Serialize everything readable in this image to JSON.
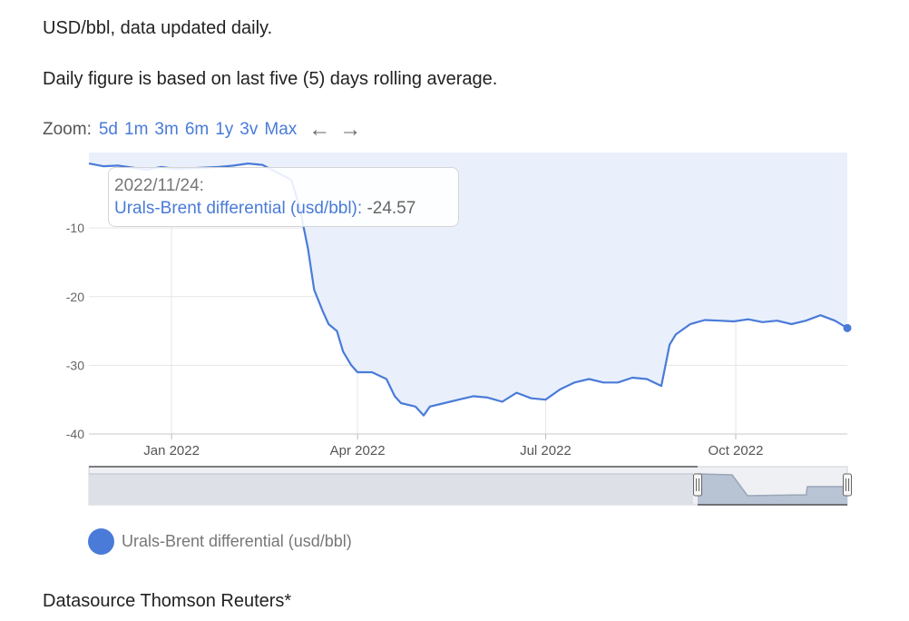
{
  "intro": {
    "line1": "USD/bbl, data updated daily.",
    "line2": "Daily figure is based on last five (5) days rolling average."
  },
  "zoom": {
    "label": "Zoom:",
    "options": [
      "5d",
      "1m",
      "3m",
      "6m",
      "1y",
      "3v",
      "Max"
    ],
    "back_icon": "arrow-left-icon",
    "forward_icon": "arrow-right-icon"
  },
  "tooltip": {
    "date": "2022/11/24:",
    "series": "Urals-Brent differential (usd/bbl)",
    "separator": ":",
    "value": "-24.57"
  },
  "legend": {
    "label": "Urals-Brent differential (usd/bbl)"
  },
  "footer": {
    "source": "Datasource Thomson Reuters*"
  },
  "colors": {
    "line": "#4a7bd8",
    "area": "#e9f0fc",
    "grid": "#e6e6e6",
    "navigator_fill": "#b8c3d4"
  },
  "chart_data": {
    "type": "area",
    "title": "",
    "xlabel": "",
    "ylabel": "",
    "x_ticks": [
      "Jan 2022",
      "Apr 2022",
      "Jul 2022",
      "Oct 2022"
    ],
    "y_ticks": [
      -10,
      -20,
      -30,
      -40
    ],
    "ylim": [
      -40,
      1
    ],
    "xlim": [
      "2021-11-22",
      "2022-11-24"
    ],
    "grid": true,
    "legend_position": "bottom-left",
    "series": [
      {
        "name": "Urals-Brent differential (usd/bbl)",
        "points": [
          [
            "2021-11-22",
            -0.6
          ],
          [
            "2021-11-29",
            -1.0
          ],
          [
            "2021-12-06",
            -0.9
          ],
          [
            "2021-12-13",
            -1.2
          ],
          [
            "2021-12-20",
            -1.5
          ],
          [
            "2021-12-27",
            -1.1
          ],
          [
            "2022-01-03",
            -1.4
          ],
          [
            "2022-01-10",
            -1.3
          ],
          [
            "2022-01-17",
            -1.2
          ],
          [
            "2022-01-24",
            -1.1
          ],
          [
            "2022-01-31",
            -0.9
          ],
          [
            "2022-02-07",
            -0.6
          ],
          [
            "2022-02-14",
            -0.8
          ],
          [
            "2022-02-21",
            -1.9
          ],
          [
            "2022-02-28",
            -3.0
          ],
          [
            "2022-03-04",
            -7.0
          ],
          [
            "2022-03-08",
            -13.0
          ],
          [
            "2022-03-11",
            -19.0
          ],
          [
            "2022-03-15",
            -22.0
          ],
          [
            "2022-03-18",
            -24.0
          ],
          [
            "2022-03-22",
            -25.0
          ],
          [
            "2022-03-25",
            -28.0
          ],
          [
            "2022-03-29",
            -30.0
          ],
          [
            "2022-04-01",
            -31.0
          ],
          [
            "2022-04-08",
            -31.0
          ],
          [
            "2022-04-15",
            -32.0
          ],
          [
            "2022-04-19",
            -34.5
          ],
          [
            "2022-04-22",
            -35.5
          ],
          [
            "2022-04-29",
            -36.0
          ],
          [
            "2022-05-03",
            -37.3
          ],
          [
            "2022-05-06",
            -36.0
          ],
          [
            "2022-05-13",
            -35.5
          ],
          [
            "2022-05-20",
            -35.0
          ],
          [
            "2022-05-27",
            -34.5
          ],
          [
            "2022-06-03",
            -34.7
          ],
          [
            "2022-06-10",
            -35.3
          ],
          [
            "2022-06-17",
            -34.0
          ],
          [
            "2022-06-24",
            -34.8
          ],
          [
            "2022-07-01",
            -35.0
          ],
          [
            "2022-07-08",
            -33.5
          ],
          [
            "2022-07-15",
            -32.5
          ],
          [
            "2022-07-22",
            -32.0
          ],
          [
            "2022-07-29",
            -32.5
          ],
          [
            "2022-08-05",
            -32.5
          ],
          [
            "2022-08-12",
            -31.8
          ],
          [
            "2022-08-19",
            -32.0
          ],
          [
            "2022-08-26",
            -33.0
          ],
          [
            "2022-08-30",
            -27.0
          ],
          [
            "2022-09-02",
            -25.5
          ],
          [
            "2022-09-09",
            -24.0
          ],
          [
            "2022-09-16",
            -23.4
          ],
          [
            "2022-09-23",
            -23.5
          ],
          [
            "2022-09-30",
            -23.6
          ],
          [
            "2022-10-07",
            -23.3
          ],
          [
            "2022-10-14",
            -23.7
          ],
          [
            "2022-10-21",
            -23.5
          ],
          [
            "2022-10-28",
            -24.0
          ],
          [
            "2022-11-04",
            -23.5
          ],
          [
            "2022-11-11",
            -22.7
          ],
          [
            "2022-11-18",
            -23.5
          ],
          [
            "2022-11-24",
            -24.57
          ]
        ]
      }
    ]
  }
}
